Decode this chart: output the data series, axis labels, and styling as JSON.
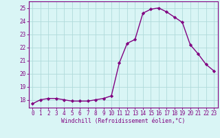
{
  "x": [
    0,
    1,
    2,
    3,
    4,
    5,
    6,
    7,
    8,
    9,
    10,
    11,
    12,
    13,
    14,
    15,
    16,
    17,
    18,
    19,
    20,
    21,
    22,
    23
  ],
  "y": [
    17.7,
    18.0,
    18.1,
    18.1,
    18.0,
    17.9,
    17.9,
    17.9,
    18.0,
    18.1,
    18.3,
    20.8,
    22.3,
    22.6,
    24.6,
    24.9,
    25.0,
    24.7,
    24.3,
    23.9,
    22.2,
    21.5,
    20.7,
    20.2
  ],
  "line_color": "#800080",
  "marker": "D",
  "markersize": 2.2,
  "linewidth": 1.0,
  "bg_color": "#d9f5f5",
  "grid_color": "#b0dada",
  "xlabel": "Windchill (Refroidissement éolien,°C)",
  "xlabel_fontsize": 5.8,
  "xlabel_color": "#800080",
  "ylabel_ticks": [
    18,
    19,
    20,
    21,
    22,
    23,
    24,
    25
  ],
  "xlim": [
    -0.5,
    23.5
  ],
  "ylim": [
    17.4,
    25.5
  ],
  "tick_fontsize": 5.5,
  "tick_color": "#800080",
  "axis_color": "#800080"
}
